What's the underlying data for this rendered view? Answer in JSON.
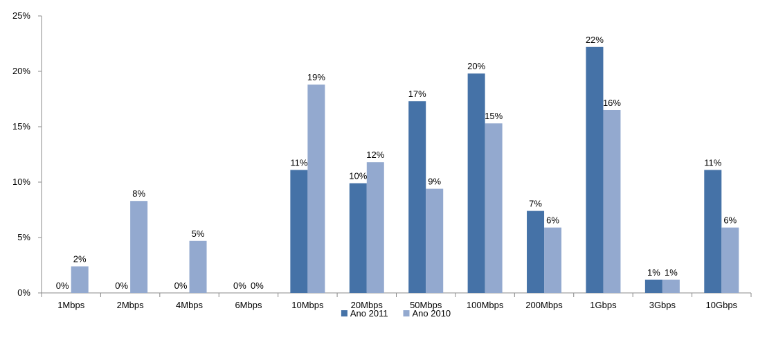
{
  "chart_data": {
    "type": "bar",
    "title": "",
    "xlabel": "",
    "ylabel": "",
    "categories": [
      "1Mbps",
      "2Mbps",
      "4Mbps",
      "6Mbps",
      "10Mbps",
      "20Mbps",
      "50Mbps",
      "100Mbps",
      "200Mbps",
      "1Gbps",
      "3Gbps",
      "10Gbps"
    ],
    "ylim": [
      0,
      25
    ],
    "yticks": [
      0,
      5,
      10,
      15,
      20,
      25
    ],
    "ytick_labels": [
      "0%",
      "5%",
      "10%",
      "15%",
      "20%",
      "25%"
    ],
    "grid": false,
    "legend_position": "bottom",
    "series": [
      {
        "name": "Ano 2011",
        "color": "#4572A7",
        "values": [
          0,
          0,
          0,
          0,
          11.1,
          9.9,
          17.3,
          19.8,
          7.4,
          22.2,
          1.2,
          11.1
        ],
        "labels": [
          "0%",
          "0%",
          "0%",
          "0%",
          "11%",
          "10%",
          "17%",
          "20%",
          "7%",
          "22%",
          "1%",
          "11%"
        ]
      },
      {
        "name": "Ano 2010",
        "color": "#93A9CF",
        "values": [
          2.4,
          8.3,
          4.7,
          0,
          18.8,
          11.8,
          9.4,
          15.3,
          5.9,
          16.5,
          1.2,
          5.9
        ],
        "labels": [
          "2%",
          "8%",
          "5%",
          "0%",
          "19%",
          "12%",
          "9%",
          "15%",
          "6%",
          "16%",
          "1%",
          "6%"
        ]
      }
    ]
  }
}
